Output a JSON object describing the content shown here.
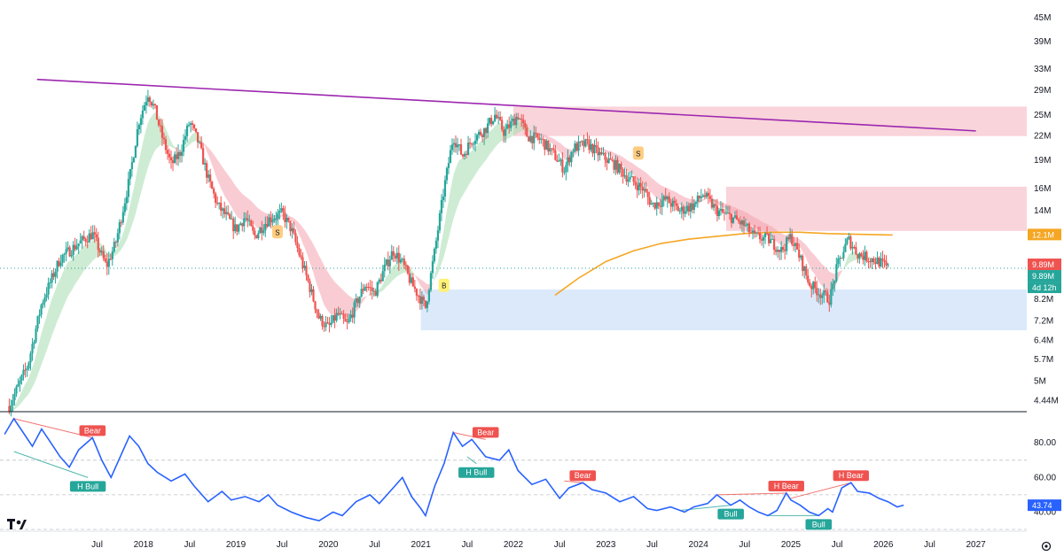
{
  "chart_data": [
    {
      "type": "candlestick",
      "title": "",
      "y_scale": "log",
      "ylim": [
        4.2,
        48
      ],
      "xlim": [
        2016.45,
        2027.55
      ],
      "price_ticks": [
        "45M",
        "39M",
        "33M",
        "29M",
        "25M",
        "22M",
        "19M",
        "16M",
        "14M",
        "12.1M",
        "9.89M",
        "8.2M",
        "7.2M",
        "6.4M",
        "5.7M",
        "5M",
        "4.44M"
      ],
      "price_tick_values": [
        45,
        39,
        33,
        29,
        25,
        22,
        19,
        16,
        14,
        12.1,
        9.89,
        8.2,
        7.2,
        6.4,
        5.7,
        5,
        4.44
      ],
      "x_ticks": [
        "Jul",
        "2018",
        "Jul",
        "2019",
        "Jul",
        "2020",
        "Jul",
        "2021",
        "Jul",
        "2022",
        "Jul",
        "2023",
        "Jul",
        "2024",
        "Jul",
        "2025",
        "Jul",
        "2026",
        "Jul",
        "2027"
      ],
      "x_tick_values": [
        2017.5,
        2018,
        2018.5,
        2019,
        2019.5,
        2020,
        2020.5,
        2021,
        2021.5,
        2022,
        2022.5,
        2023,
        2023.5,
        2024,
        2024.5,
        2025,
        2025.5,
        2026,
        2026.5,
        2027
      ],
      "price_path": [
        [
          2016.55,
          4.3
        ],
        [
          2016.75,
          5.5
        ],
        [
          2016.9,
          8.0
        ],
        [
          2017.1,
          10.5
        ],
        [
          2017.3,
          11.5
        ],
        [
          2017.45,
          12.2
        ],
        [
          2017.6,
          10.0
        ],
        [
          2017.7,
          11.5
        ],
        [
          2017.85,
          17.0
        ],
        [
          2017.95,
          24.0
        ],
        [
          2018.05,
          28.5
        ],
        [
          2018.12,
          26.0
        ],
        [
          2018.2,
          22.0
        ],
        [
          2018.3,
          18.5
        ],
        [
          2018.4,
          20.0
        ],
        [
          2018.5,
          24.0
        ],
        [
          2018.6,
          21.0
        ],
        [
          2018.7,
          17.0
        ],
        [
          2018.8,
          14.5
        ],
        [
          2018.9,
          13.5
        ],
        [
          2019.0,
          12.5
        ],
        [
          2019.1,
          13.5
        ],
        [
          2019.2,
          12.0
        ],
        [
          2019.35,
          13.3
        ],
        [
          2019.5,
          13.8
        ],
        [
          2019.6,
          12.5
        ],
        [
          2019.7,
          10.5
        ],
        [
          2019.8,
          8.8
        ],
        [
          2019.9,
          7.3
        ],
        [
          2020.0,
          6.9
        ],
        [
          2020.1,
          7.5
        ],
        [
          2020.2,
          7.0
        ],
        [
          2020.3,
          8.0
        ],
        [
          2020.4,
          9.0
        ],
        [
          2020.5,
          8.5
        ],
        [
          2020.6,
          9.8
        ],
        [
          2020.7,
          11.0
        ],
        [
          2020.8,
          10.2
        ],
        [
          2020.9,
          9.0
        ],
        [
          2021.0,
          8.2
        ],
        [
          2021.05,
          7.8
        ],
        [
          2021.15,
          11.0
        ],
        [
          2021.25,
          16.0
        ],
        [
          2021.35,
          22.0
        ],
        [
          2021.45,
          19.5
        ],
        [
          2021.55,
          21.5
        ],
        [
          2021.7,
          23.0
        ],
        [
          2021.8,
          25.0
        ],
        [
          2021.9,
          22.5
        ],
        [
          2022.05,
          25.0
        ],
        [
          2022.15,
          22.0
        ],
        [
          2022.3,
          21.5
        ],
        [
          2022.45,
          19.5
        ],
        [
          2022.55,
          18.0
        ],
        [
          2022.65,
          20.5
        ],
        [
          2022.8,
          21.0
        ],
        [
          2022.95,
          19.5
        ],
        [
          2023.1,
          18.5
        ],
        [
          2023.25,
          17.0
        ],
        [
          2023.4,
          16.0
        ],
        [
          2023.5,
          14.5
        ],
        [
          2023.65,
          15.0
        ],
        [
          2023.8,
          14.0
        ],
        [
          2023.95,
          14.5
        ],
        [
          2024.05,
          15.5
        ],
        [
          2024.2,
          14.0
        ],
        [
          2024.35,
          13.5
        ],
        [
          2024.5,
          12.8
        ],
        [
          2024.6,
          12.0
        ],
        [
          2024.75,
          11.8
        ],
        [
          2024.9,
          11.0
        ],
        [
          2025.0,
          12.0
        ],
        [
          2025.1,
          10.5
        ],
        [
          2025.2,
          9.0
        ],
        [
          2025.32,
          8.5
        ],
        [
          2025.42,
          8.2
        ],
        [
          2025.5,
          10.0
        ],
        [
          2025.62,
          11.8
        ],
        [
          2025.72,
          10.8
        ],
        [
          2025.85,
          10.5
        ],
        [
          2025.95,
          10.3
        ],
        [
          2026.05,
          9.89
        ]
      ],
      "ema200": [
        [
          2022.45,
          8.4
        ],
        [
          2022.7,
          9.3
        ],
        [
          2023.0,
          10.3
        ],
        [
          2023.3,
          11.0
        ],
        [
          2023.6,
          11.5
        ],
        [
          2023.9,
          11.8
        ],
        [
          2024.2,
          12.0
        ],
        [
          2024.5,
          12.2
        ],
        [
          2024.8,
          12.3
        ],
        [
          2025.1,
          12.3
        ],
        [
          2025.4,
          12.2
        ],
        [
          2025.7,
          12.15
        ],
        [
          2026.1,
          12.1
        ]
      ],
      "trendline": [
        [
          2016.85,
          31.0
        ],
        [
          2027.0,
          22.7
        ]
      ],
      "zones": [
        {
          "y1": 22.0,
          "y2": 26.3,
          "x1": 2022.0,
          "x2": 2027.55,
          "color": "#f7c5ce"
        },
        {
          "y1": 12.4,
          "y2": 16.2,
          "x1": 2024.3,
          "x2": 2027.55,
          "color": "#f7c5ce"
        },
        {
          "y1": 6.8,
          "y2": 8.7,
          "x1": 2021.0,
          "x2": 2027.55,
          "color": "#cfe1fa"
        }
      ],
      "signals": [
        {
          "label": "S",
          "x": 2019.45,
          "y": 12.3
        },
        {
          "label": "B",
          "x": 2021.25,
          "y": 8.9
        },
        {
          "label": "S",
          "x": 2023.35,
          "y": 19.8
        }
      ],
      "price_labels": [
        {
          "text": "12.1M",
          "value": 12.1,
          "color": "#f5a623"
        },
        {
          "text": "9.89M",
          "value": 9.89,
          "color": "#ef5350"
        },
        {
          "text": "9.89M",
          "value": 9.89,
          "color": "#26a69a"
        },
        {
          "text": "4d 12h",
          "value": 9.89,
          "color": "#26a69a"
        }
      ]
    },
    {
      "type": "line",
      "name": "",
      "ylim": [
        30,
        97
      ],
      "y_ticks": [
        "80.00",
        "60.00",
        "40.00"
      ],
      "y_tick_values": [
        80,
        60,
        40
      ],
      "levels": [
        70,
        50,
        30
      ],
      "current": "43.74",
      "color": "#2962ff",
      "values": [
        [
          2016.5,
          85
        ],
        [
          2016.6,
          94
        ],
        [
          2016.7,
          86
        ],
        [
          2016.8,
          78
        ],
        [
          2016.9,
          88
        ],
        [
          2017.0,
          80
        ],
        [
          2017.1,
          72
        ],
        [
          2017.2,
          66
        ],
        [
          2017.3,
          76
        ],
        [
          2017.45,
          83
        ],
        [
          2017.55,
          70
        ],
        [
          2017.65,
          60
        ],
        [
          2017.75,
          72
        ],
        [
          2017.85,
          84
        ],
        [
          2017.95,
          78
        ],
        [
          2018.05,
          68
        ],
        [
          2018.15,
          63
        ],
        [
          2018.3,
          58
        ],
        [
          2018.45,
          62
        ],
        [
          2018.55,
          55
        ],
        [
          2018.7,
          46
        ],
        [
          2018.85,
          52
        ],
        [
          2018.95,
          47
        ],
        [
          2019.1,
          49
        ],
        [
          2019.25,
          46
        ],
        [
          2019.35,
          50
        ],
        [
          2019.45,
          44
        ],
        [
          2019.6,
          40
        ],
        [
          2019.75,
          37
        ],
        [
          2019.9,
          35
        ],
        [
          2020.05,
          40
        ],
        [
          2020.15,
          38
        ],
        [
          2020.3,
          46
        ],
        [
          2020.45,
          50
        ],
        [
          2020.55,
          45
        ],
        [
          2020.7,
          54
        ],
        [
          2020.8,
          60
        ],
        [
          2020.9,
          49
        ],
        [
          2021.0,
          42
        ],
        [
          2021.05,
          38
        ],
        [
          2021.15,
          55
        ],
        [
          2021.25,
          68
        ],
        [
          2021.35,
          86
        ],
        [
          2021.45,
          78
        ],
        [
          2021.55,
          82
        ],
        [
          2021.7,
          72
        ],
        [
          2021.85,
          70
        ],
        [
          2021.95,
          76
        ],
        [
          2022.05,
          64
        ],
        [
          2022.2,
          56
        ],
        [
          2022.35,
          59
        ],
        [
          2022.5,
          48
        ],
        [
          2022.6,
          54
        ],
        [
          2022.75,
          57
        ],
        [
          2022.85,
          53
        ],
        [
          2023.0,
          51
        ],
        [
          2023.15,
          46
        ],
        [
          2023.3,
          49
        ],
        [
          2023.45,
          42
        ],
        [
          2023.55,
          41
        ],
        [
          2023.7,
          43
        ],
        [
          2023.85,
          40
        ],
        [
          2023.95,
          43
        ],
        [
          2024.1,
          45
        ],
        [
          2024.2,
          50
        ],
        [
          2024.35,
          44
        ],
        [
          2024.45,
          47
        ],
        [
          2024.55,
          43
        ],
        [
          2024.65,
          40
        ],
        [
          2024.75,
          38
        ],
        [
          2024.85,
          41
        ],
        [
          2024.95,
          51
        ],
        [
          2025.0,
          47
        ],
        [
          2025.1,
          44
        ],
        [
          2025.2,
          40
        ],
        [
          2025.3,
          38
        ],
        [
          2025.4,
          42
        ],
        [
          2025.45,
          40
        ],
        [
          2025.55,
          54
        ],
        [
          2025.65,
          57
        ],
        [
          2025.72,
          52
        ],
        [
          2025.85,
          51
        ],
        [
          2025.95,
          48
        ],
        [
          2026.05,
          46
        ],
        [
          2026.15,
          43
        ],
        [
          2026.22,
          44
        ]
      ],
      "divergences": [
        {
          "label": "Bear",
          "points": [
            [
              2016.6,
              94
            ],
            [
              2017.45,
              83
            ]
          ],
          "color": "#ef5350"
        },
        {
          "label": "H Bull",
          "points": [
            [
              2016.6,
              75
            ],
            [
              2017.4,
              60
            ]
          ],
          "color": "#26a69a"
        },
        {
          "label": "Bear",
          "points": [
            [
              2021.35,
              86
            ],
            [
              2021.7,
              82
            ]
          ],
          "color": "#ef5350"
        },
        {
          "label": "H Bull",
          "points": [
            [
              2021.5,
              72
            ],
            [
              2021.6,
              68
            ]
          ],
          "color": "#26a69a"
        },
        {
          "label": "Bear",
          "points": [
            [
              2022.55,
              58
            ],
            [
              2022.75,
              57
            ]
          ],
          "color": "#ef5350"
        },
        {
          "label": "Bull",
          "points": [
            [
              2023.8,
              41
            ],
            [
              2024.35,
              44
            ]
          ],
          "color": "#26a69a"
        },
        {
          "label": "H Bear",
          "points": [
            [
              2024.2,
              50
            ],
            [
              2024.95,
              51
            ]
          ],
          "color": "#ef5350"
        },
        {
          "label": "Bull",
          "points": [
            [
              2024.75,
              38
            ],
            [
              2025.3,
              38
            ]
          ],
          "color": "#26a69a"
        },
        {
          "label": "H Bear",
          "points": [
            [
              2025.0,
              48
            ],
            [
              2025.65,
              57
            ]
          ],
          "color": "#ef5350"
        }
      ]
    }
  ],
  "colors": {
    "up": "#26a69a",
    "down": "#ef5350",
    "trendline": "#9c27b0",
    "ema": "#f5a623",
    "rsi": "#2962ff"
  },
  "icons": {
    "logo": "tradingview-logo",
    "settings": "gear-icon"
  }
}
